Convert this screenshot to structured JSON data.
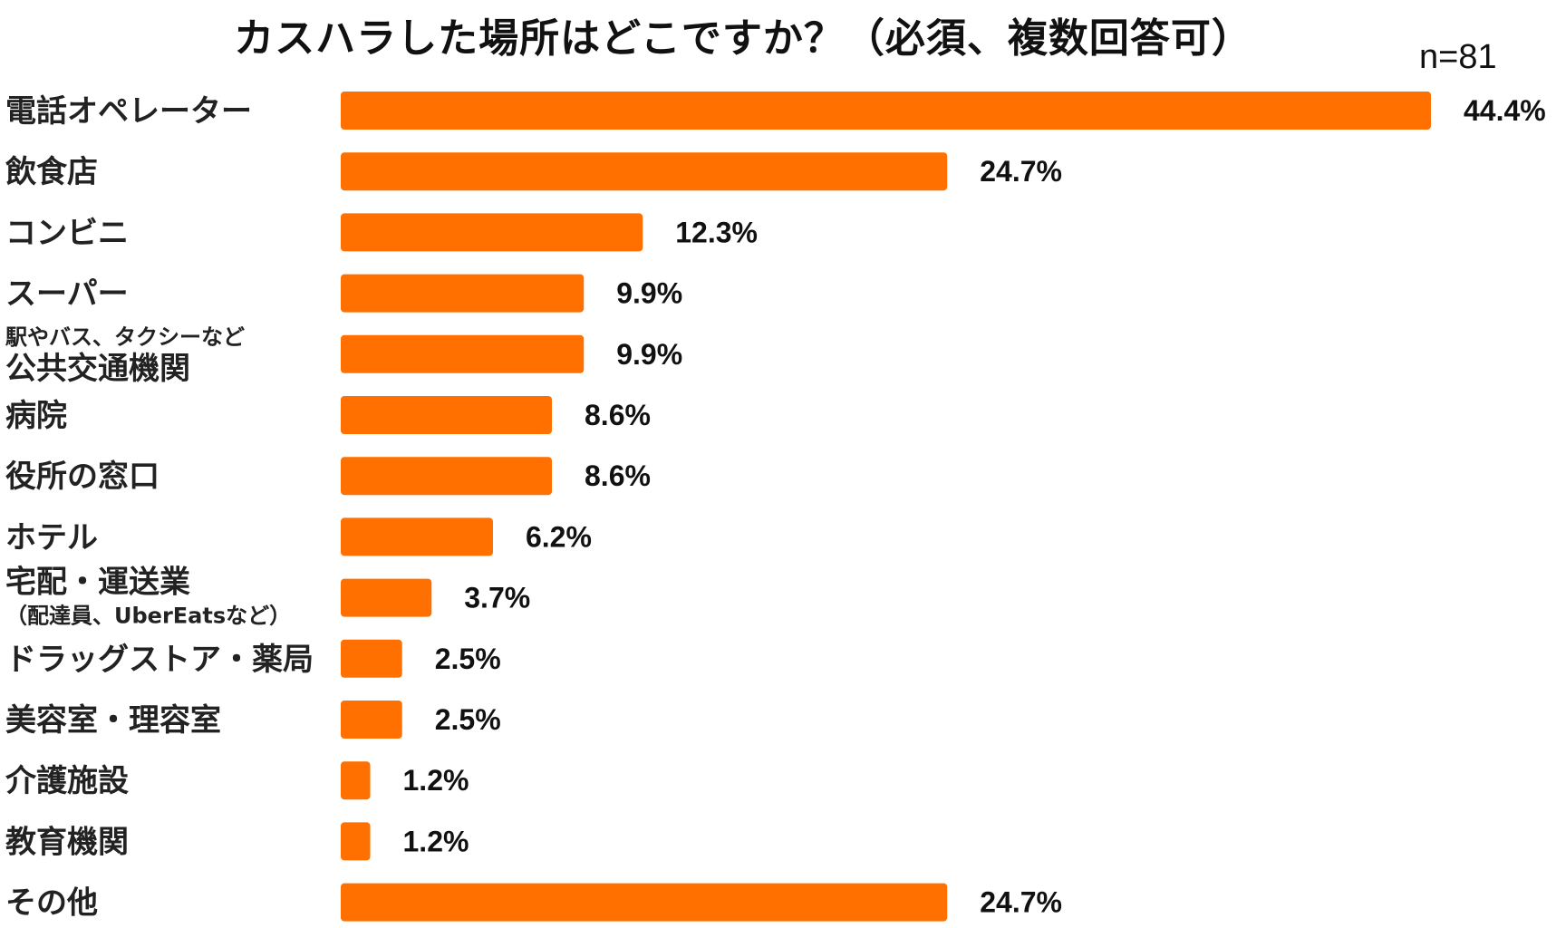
{
  "chart_data": {
    "type": "bar",
    "orientation": "horizontal",
    "title": "カスハラした場所はどこですか？（必須、複数回答可）",
    "note": "n=81",
    "xlim": [
      0,
      44.4
    ],
    "bar_color": "#ff7000",
    "grid": false,
    "legend": "none",
    "categories": [
      {
        "lines": [
          {
            "text": "電話オペレーター",
            "size": "large"
          }
        ]
      },
      {
        "lines": [
          {
            "text": "飲食店",
            "size": "large"
          }
        ]
      },
      {
        "lines": [
          {
            "text": "コンビニ",
            "size": "large"
          }
        ]
      },
      {
        "lines": [
          {
            "text": "スーパー",
            "size": "large"
          }
        ]
      },
      {
        "lines": [
          {
            "text": "駅やバス、タクシーなど",
            "size": "small"
          },
          {
            "text": "公共交通機関",
            "size": "large"
          }
        ]
      },
      {
        "lines": [
          {
            "text": "病院",
            "size": "large"
          }
        ]
      },
      {
        "lines": [
          {
            "text": "役所の窓口",
            "size": "large"
          }
        ]
      },
      {
        "lines": [
          {
            "text": "ホテル",
            "size": "large"
          }
        ]
      },
      {
        "lines": [
          {
            "text": "宅配・運送業",
            "size": "large"
          },
          {
            "text": "（配達員、UberEatsなど）",
            "size": "small"
          }
        ]
      },
      {
        "lines": [
          {
            "text": "ドラッグストア・薬局",
            "size": "large"
          }
        ]
      },
      {
        "lines": [
          {
            "text": "美容室・理容室",
            "size": "large"
          }
        ]
      },
      {
        "lines": [
          {
            "text": "介護施設",
            "size": "large"
          }
        ]
      },
      {
        "lines": [
          {
            "text": "教育機関",
            "size": "large"
          }
        ]
      },
      {
        "lines": [
          {
            "text": "その他",
            "size": "large"
          }
        ]
      }
    ],
    "values": [
      44.4,
      24.7,
      12.3,
      9.9,
      9.9,
      8.6,
      8.6,
      6.2,
      3.7,
      2.5,
      2.5,
      1.2,
      1.2,
      24.7
    ],
    "value_labels": [
      "44.4%",
      "24.7%",
      "12.3%",
      "9.9%",
      "9.9%",
      "8.6%",
      "8.6%",
      "6.2%",
      "3.7%",
      "2.5%",
      "2.5%",
      "1.2%",
      "1.2%",
      "24.7%"
    ]
  }
}
